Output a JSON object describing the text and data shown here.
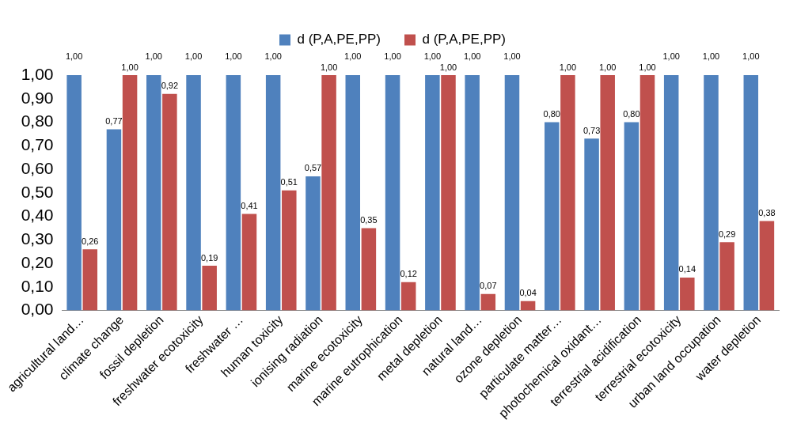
{
  "chart_data": {
    "type": "bar",
    "categories": [
      "agricultural land…",
      "climate change",
      "fossil depletion",
      "freshwater ecotoxicity",
      "freshwater …",
      "human toxicity",
      "ionising radiation",
      "marine ecotoxicity",
      "marine eutrophication",
      "metal depletion",
      "natural land…",
      "ozone depletion",
      "particulate matter…",
      "photochemical oxidant…",
      "terrestrial acidification",
      "terrestrial ecotoxicity",
      "urban land occupation",
      "water depletion"
    ],
    "series": [
      {
        "name": "d (P,A,PE,PP)",
        "color": "#4f81bd",
        "values": [
          1,
          0.77,
          1,
          1,
          1,
          1,
          0.57,
          1,
          1,
          1,
          1,
          1,
          0.8,
          0.73,
          0.8,
          1,
          1,
          1
        ],
        "value_labels": [
          "1,00",
          "0,77",
          "1,00",
          "1,00",
          "1,00",
          "1,00",
          "0,57",
          "1,00",
          "1,00",
          "1,00",
          "1,00",
          "1,00",
          "0,80",
          "0,73",
          "0,80",
          "1,00",
          "1,00",
          "1,00"
        ]
      },
      {
        "name": "d (P,A,PE,PP)",
        "color": "#c0504d",
        "values": [
          0.26,
          1,
          0.92,
          0.19,
          0.41,
          0.51,
          1,
          0.35,
          0.12,
          1,
          0.07,
          0.04,
          1,
          1,
          1,
          0.14,
          0.29,
          0.38
        ],
        "value_labels": [
          "0,26",
          "1,00",
          "0,92",
          "0,19",
          "0,41",
          "0,51",
          "1,00",
          "0,35",
          "0,12",
          "1,00",
          "0,07",
          "0,04",
          "1,00",
          "1,00",
          "1,00",
          "0,14",
          "0,29",
          "0,38"
        ]
      }
    ],
    "ylim": [
      0,
      1
    ],
    "yticks": [
      {
        "value": 0,
        "label": "0,00"
      },
      {
        "value": 0.1,
        "label": "0,10"
      },
      {
        "value": 0.2,
        "label": "0,20"
      },
      {
        "value": 0.3,
        "label": "0,30"
      },
      {
        "value": 0.4,
        "label": "0,40"
      },
      {
        "value": 0.5,
        "label": "0,50"
      },
      {
        "value": 0.6,
        "label": "0,60"
      },
      {
        "value": 0.7,
        "label": "0,70"
      },
      {
        "value": 0.8,
        "label": "0,80"
      },
      {
        "value": 0.9,
        "label": "0,90"
      },
      {
        "value": 1,
        "label": "1,00"
      }
    ],
    "grid": false,
    "legend": "top"
  }
}
